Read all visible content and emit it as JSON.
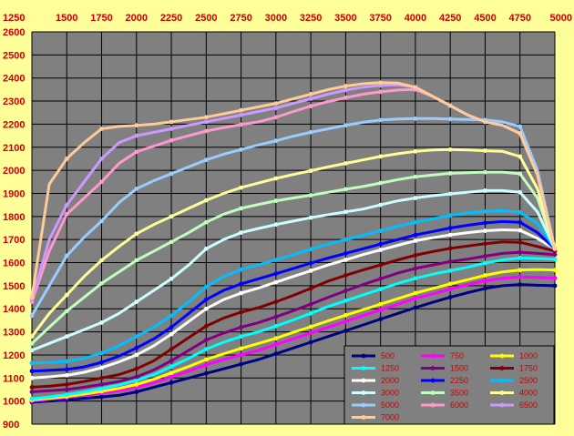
{
  "chart_data": {
    "type": "line",
    "title": "",
    "xlabel": "",
    "ylabel": "",
    "x": [
      1250,
      1375,
      1500,
      1625,
      1750,
      1875,
      2000,
      2125,
      2250,
      2375,
      2500,
      2625,
      2750,
      2875,
      3000,
      3125,
      3250,
      3375,
      3500,
      3625,
      3750,
      3875,
      4000,
      4125,
      4250,
      4375,
      4500,
      4625,
      4750,
      4875,
      5000
    ],
    "xticks": [
      1250,
      1500,
      1750,
      2000,
      2250,
      2500,
      2750,
      3000,
      3250,
      3500,
      3750,
      4000,
      4250,
      4500,
      4750,
      5000
    ],
    "yticks": [
      900,
      1000,
      1100,
      1200,
      1300,
      1400,
      1500,
      1600,
      1700,
      1800,
      1900,
      2000,
      2100,
      2200,
      2300,
      2400,
      2500,
      2600
    ],
    "xlim": [
      1250,
      5000
    ],
    "ylim": [
      900,
      2600
    ],
    "grid": true,
    "legend_position": "bottom-right",
    "colors": {
      "background": "#ffff99",
      "plot_area": "#808080",
      "grid": "#000000",
      "tick_text": "#cc0000",
      "legend_bg": "#808080"
    },
    "series": [
      {
        "name": "500",
        "color": "#000080",
        "values": [
          995,
          1000,
          1005,
          1012,
          1018,
          1025,
          1040,
          1060,
          1080,
          1100,
          1120,
          1140,
          1160,
          1180,
          1205,
          1230,
          1255,
          1280,
          1305,
          1330,
          1355,
          1380,
          1405,
          1428,
          1450,
          1470,
          1488,
          1500,
          1505,
          1502,
          1500
        ]
      },
      {
        "name": "750",
        "color": "#ff00ff",
        "values": [
          1000,
          1008,
          1016,
          1025,
          1035,
          1045,
          1060,
          1080,
          1105,
          1130,
          1158,
          1180,
          1200,
          1220,
          1245,
          1270,
          1295,
          1320,
          1345,
          1370,
          1395,
          1420,
          1445,
          1465,
          1485,
          1505,
          1522,
          1532,
          1538,
          1536,
          1533
        ]
      },
      {
        "name": "1000",
        "color": "#ffff00",
        "values": [
          1005,
          1012,
          1020,
          1030,
          1042,
          1055,
          1072,
          1095,
          1122,
          1150,
          1180,
          1205,
          1228,
          1250,
          1272,
          1298,
          1322,
          1348,
          1372,
          1396,
          1420,
          1444,
          1468,
          1488,
          1508,
          1526,
          1545,
          1560,
          1568,
          1570,
          1568
        ]
      },
      {
        "name": "1250",
        "color": "#00ffff",
        "values": [
          1010,
          1018,
          1028,
          1040,
          1055,
          1070,
          1090,
          1115,
          1150,
          1185,
          1225,
          1255,
          1280,
          1300,
          1325,
          1352,
          1380,
          1410,
          1435,
          1460,
          1485,
          1510,
          1532,
          1550,
          1565,
          1580,
          1598,
          1612,
          1620,
          1618,
          1615
        ]
      },
      {
        "name": "1500",
        "color": "#800080",
        "values": [
          1040,
          1045,
          1050,
          1060,
          1072,
          1085,
          1105,
          1135,
          1175,
          1220,
          1265,
          1295,
          1320,
          1340,
          1365,
          1392,
          1420,
          1450,
          1478,
          1505,
          1530,
          1555,
          1575,
          1590,
          1605,
          1615,
          1628,
          1640,
          1645,
          1640,
          1635
        ]
      },
      {
        "name": "1750",
        "color": "#800000",
        "values": [
          1060,
          1065,
          1072,
          1085,
          1100,
          1115,
          1140,
          1175,
          1225,
          1275,
          1325,
          1360,
          1385,
          1405,
          1430,
          1458,
          1488,
          1520,
          1545,
          1568,
          1590,
          1612,
          1632,
          1648,
          1662,
          1672,
          1682,
          1690,
          1688,
          1670,
          1650
        ]
      },
      {
        "name": "2000",
        "color": "#ffffff",
        "values": [
          1100,
          1105,
          1112,
          1125,
          1145,
          1170,
          1200,
          1240,
          1290,
          1345,
          1400,
          1440,
          1468,
          1490,
          1515,
          1540,
          1565,
          1590,
          1612,
          1635,
          1655,
          1675,
          1695,
          1708,
          1720,
          1730,
          1738,
          1742,
          1740,
          1705,
          1660
        ]
      },
      {
        "name": "2250",
        "color": "#0000ff",
        "values": [
          1130,
          1133,
          1137,
          1148,
          1168,
          1195,
          1230,
          1270,
          1320,
          1380,
          1440,
          1480,
          1508,
          1530,
          1552,
          1575,
          1598,
          1620,
          1640,
          1660,
          1680,
          1700,
          1720,
          1735,
          1750,
          1762,
          1772,
          1778,
          1775,
          1730,
          1660
        ]
      },
      {
        "name": "2500",
        "color": "#00bfff",
        "values": [
          1165,
          1167,
          1172,
          1185,
          1208,
          1240,
          1280,
          1320,
          1370,
          1430,
          1495,
          1540,
          1570,
          1590,
          1612,
          1635,
          1658,
          1680,
          1700,
          1718,
          1738,
          1758,
          1775,
          1790,
          1805,
          1815,
          1822,
          1825,
          1818,
          1770,
          1660
        ]
      },
      {
        "name": "3000",
        "color": "#ccffff",
        "values": [
          1220,
          1250,
          1280,
          1310,
          1340,
          1380,
          1430,
          1480,
          1530,
          1590,
          1660,
          1700,
          1730,
          1748,
          1765,
          1780,
          1795,
          1808,
          1820,
          1832,
          1850,
          1868,
          1880,
          1890,
          1898,
          1905,
          1912,
          1912,
          1905,
          1820,
          1660
        ]
      },
      {
        "name": "3500",
        "color": "#c0ffc0",
        "values": [
          1250,
          1320,
          1390,
          1450,
          1510,
          1560,
          1610,
          1650,
          1690,
          1730,
          1775,
          1810,
          1835,
          1852,
          1868,
          1880,
          1892,
          1905,
          1918,
          1930,
          1945,
          1960,
          1972,
          1980,
          1987,
          1990,
          1992,
          1992,
          1985,
          1880,
          1660
        ]
      },
      {
        "name": "4000",
        "color": "#ffff99",
        "values": [
          1280,
          1380,
          1460,
          1540,
          1610,
          1670,
          1725,
          1765,
          1800,
          1835,
          1870,
          1900,
          1925,
          1945,
          1965,
          1982,
          1998,
          2015,
          2030,
          2045,
          2060,
          2072,
          2082,
          2088,
          2090,
          2088,
          2085,
          2082,
          2060,
          1920,
          1660
        ]
      },
      {
        "name": "5000",
        "color": "#99ccff",
        "values": [
          1370,
          1500,
          1630,
          1710,
          1780,
          1860,
          1920,
          1955,
          1985,
          2015,
          2045,
          2070,
          2090,
          2110,
          2128,
          2148,
          2165,
          2180,
          2195,
          2208,
          2218,
          2222,
          2224,
          2224,
          2222,
          2220,
          2218,
          2210,
          2190,
          2000,
          1660
        ]
      },
      {
        "name": "6000",
        "color": "#ff99cc",
        "values": [
          1430,
          1650,
          1810,
          1880,
          1950,
          2030,
          2080,
          2105,
          2130,
          2150,
          2170,
          2185,
          2198,
          2210,
          2230,
          2255,
          2278,
          2298,
          2315,
          2330,
          2340,
          2348,
          2350,
          2320,
          2280,
          2240,
          2210,
          2195,
          2160,
          1980,
          1660
        ]
      },
      {
        "name": "6500",
        "color": "#cc99ff",
        "values": [
          1440,
          1700,
          1850,
          1950,
          2050,
          2120,
          2150,
          2165,
          2180,
          2195,
          2210,
          2225,
          2240,
          2255,
          2270,
          2290,
          2310,
          2330,
          2348,
          2360,
          2368,
          2370,
          2360,
          2320,
          2280,
          2240,
          2210,
          2195,
          2160,
          1980,
          1660
        ]
      },
      {
        "name": "7000",
        "color": "#ffcc99",
        "values": [
          1450,
          1940,
          2050,
          2120,
          2180,
          2190,
          2195,
          2200,
          2210,
          2220,
          2230,
          2245,
          2260,
          2275,
          2290,
          2310,
          2330,
          2350,
          2365,
          2375,
          2380,
          2378,
          2360,
          2320,
          2280,
          2240,
          2210,
          2195,
          2160,
          1980,
          1660
        ]
      }
    ]
  }
}
